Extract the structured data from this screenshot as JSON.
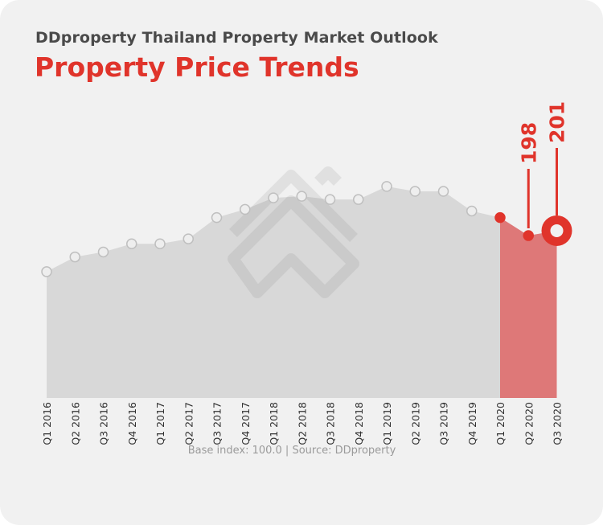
{
  "header": {
    "subtitle": "DDproperty Thailand Property Market Outlook",
    "title": "Property Price Trends"
  },
  "footer": {
    "source": "Base index: 100.0 | Source: DDproperty"
  },
  "colors": {
    "title": "#e0342b",
    "area": "#d8d8d8",
    "highlight_area": "#de7878",
    "accent": "#e0342b"
  },
  "chart_data": {
    "type": "area",
    "title": "Property Price Trends",
    "xlabel": "",
    "ylabel": "",
    "grid": false,
    "categories": [
      "Q1 2016",
      "Q2 2016",
      "Q3 2016",
      "Q4 2016",
      "Q1 2017",
      "Q2 2017",
      "Q3 2017",
      "Q4 2017",
      "Q1 2018",
      "Q2 2018",
      "Q3 2018",
      "Q4 2018",
      "Q1 2019",
      "Q2 2019",
      "Q3 2019",
      "Q4 2019",
      "Q1 2020",
      "Q2 2020",
      "Q3 2020"
    ],
    "values": [
      176,
      185,
      188,
      193,
      193,
      196,
      209,
      214,
      221,
      222,
      220,
      220,
      228,
      225,
      225,
      213,
      209,
      198,
      201
    ],
    "highlight": {
      "from": "Q1 2020",
      "to": "Q3 2020"
    },
    "annotations": [
      {
        "category": "Q2 2020",
        "label": "198"
      },
      {
        "category": "Q3 2020",
        "label": "201"
      }
    ],
    "ylim": [
      99,
      300
    ]
  }
}
